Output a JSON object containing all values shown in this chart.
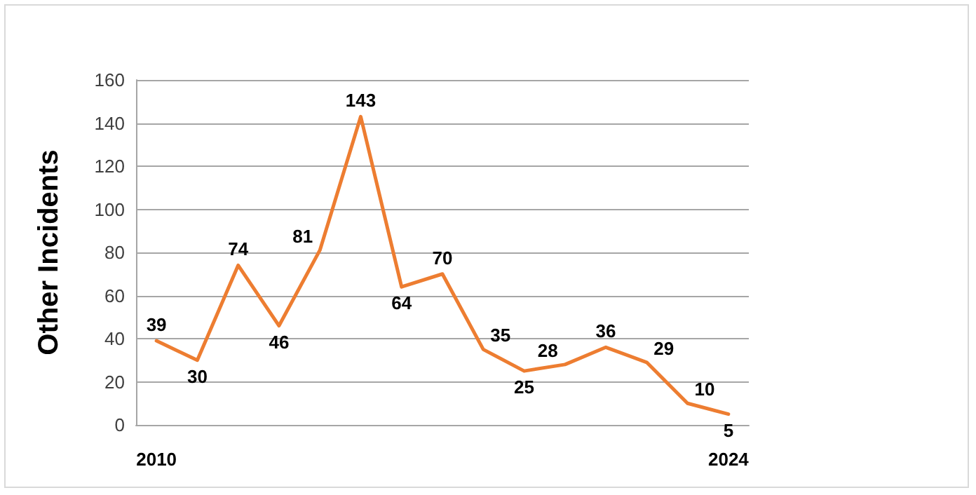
{
  "chart_data": {
    "type": "line",
    "ylabel": "Other Incidents",
    "categories": [
      "2010",
      null,
      null,
      null,
      null,
      null,
      null,
      null,
      null,
      null,
      null,
      null,
      null,
      null,
      "2024"
    ],
    "series": [
      {
        "color": "#ed7d31",
        "values": [
          39,
          30,
          74,
          46,
          81,
          143,
          64,
          70,
          35,
          25,
          28,
          36,
          29,
          10,
          5
        ]
      }
    ],
    "ylim": [
      0,
      160
    ],
    "yticks": [
      0,
      20,
      40,
      60,
      80,
      100,
      120,
      140,
      160
    ],
    "grid": "y",
    "data_labels": true,
    "marker": "none",
    "line_style": "solid"
  }
}
